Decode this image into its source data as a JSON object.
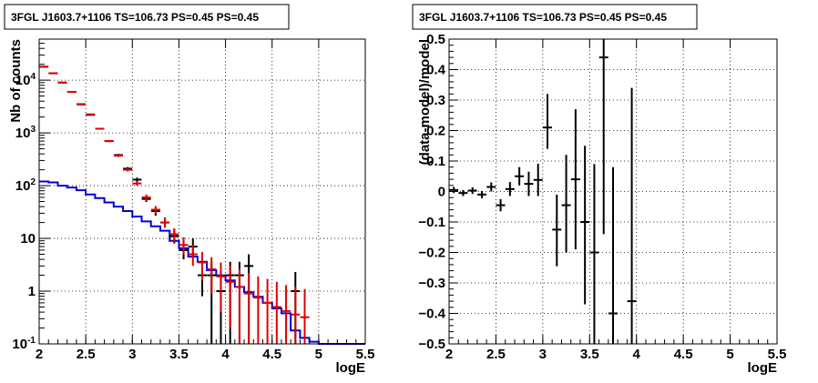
{
  "chart_data": [
    {
      "type": "line",
      "title": "3FGL J1603.7+1106 TS=106.73 PS=0.45 PS=0.45",
      "xlabel": "logE",
      "ylabel": "Nb of counts",
      "xlim": [
        2,
        5.5
      ],
      "ylim": [
        0.1,
        60000
      ],
      "yscale": "log",
      "grid": true,
      "xticks": [
        "2",
        "2.5",
        "3",
        "3.5",
        "4",
        "4.5",
        "5",
        "5.5"
      ],
      "yticks": [
        "10^-1",
        "1",
        "10",
        "10^2",
        "10^3",
        "10^4"
      ],
      "series": [
        {
          "color": "#000000",
          "points": [
            {
              "x": 2.05,
              "y": 18000,
              "lo": 17800,
              "hi": 18200
            },
            {
              "x": 2.15,
              "y": 13500,
              "lo": 13300,
              "hi": 13700
            },
            {
              "x": 2.25,
              "y": 9000,
              "lo": 8850,
              "hi": 9150
            },
            {
              "x": 2.35,
              "y": 6000,
              "lo": 5900,
              "hi": 6100
            },
            {
              "x": 2.45,
              "y": 3500,
              "lo": 3420,
              "hi": 3580
            },
            {
              "x": 2.55,
              "y": 2200,
              "lo": 2150,
              "hi": 2250
            },
            {
              "x": 2.65,
              "y": 1200,
              "lo": 1160,
              "hi": 1240
            },
            {
              "x": 2.75,
              "y": 700,
              "lo": 670,
              "hi": 730
            },
            {
              "x": 2.85,
              "y": 380,
              "lo": 360,
              "hi": 400
            },
            {
              "x": 2.95,
              "y": 210,
              "lo": 195,
              "hi": 225
            },
            {
              "x": 3.05,
              "y": 130,
              "lo": 118,
              "hi": 142
            },
            {
              "x": 3.15,
              "y": 56,
              "lo": 49,
              "hi": 63
            },
            {
              "x": 3.25,
              "y": 33,
              "lo": 27,
              "hi": 39
            },
            {
              "x": 3.35,
              "y": 20,
              "lo": 16,
              "hi": 25
            },
            {
              "x": 3.45,
              "y": 11,
              "lo": 8,
              "hi": 15
            },
            {
              "x": 3.55,
              "y": 6,
              "lo": 4,
              "hi": 9
            },
            {
              "x": 3.65,
              "y": 7,
              "lo": 4.5,
              "hi": 10
            },
            {
              "x": 3.75,
              "y": 2,
              "lo": 0.8,
              "hi": 3.6
            },
            {
              "x": 3.85,
              "y": 2,
              "lo": 0.1,
              "hi": 3.6
            },
            {
              "x": 3.95,
              "y": 1,
              "lo": 0.1,
              "hi": 2.3
            },
            {
              "x": 4.05,
              "y": 2,
              "lo": 0.1,
              "hi": 3.6
            },
            {
              "x": 4.15,
              "y": 2,
              "lo": 0.1,
              "hi": 3.6
            },
            {
              "x": 4.25,
              "y": 3,
              "lo": 0.1,
              "hi": 5
            },
            {
              "x": 4.75,
              "y": 1,
              "lo": 0.1,
              "hi": 2.3
            }
          ]
        },
        {
          "color": "#e00000",
          "points": [
            {
              "x": 2.05,
              "y": 18000,
              "lo": 17800,
              "hi": 18200
            },
            {
              "x": 2.15,
              "y": 13500,
              "lo": 13300,
              "hi": 13700
            },
            {
              "x": 2.25,
              "y": 9000,
              "lo": 8850,
              "hi": 9150
            },
            {
              "x": 2.35,
              "y": 6000,
              "lo": 5900,
              "hi": 6100
            },
            {
              "x": 2.45,
              "y": 3450,
              "lo": 3380,
              "hi": 3520
            },
            {
              "x": 2.55,
              "y": 2250,
              "lo": 2190,
              "hi": 2310
            },
            {
              "x": 2.65,
              "y": 1200,
              "lo": 1160,
              "hi": 1240
            },
            {
              "x": 2.75,
              "y": 700,
              "lo": 670,
              "hi": 730
            },
            {
              "x": 2.85,
              "y": 370,
              "lo": 350,
              "hi": 390
            },
            {
              "x": 2.95,
              "y": 200,
              "lo": 186,
              "hi": 214
            },
            {
              "x": 3.05,
              "y": 110,
              "lo": 100,
              "hi": 121
            },
            {
              "x": 3.15,
              "y": 60,
              "lo": 52,
              "hi": 68
            },
            {
              "x": 3.25,
              "y": 35,
              "lo": 29,
              "hi": 41
            },
            {
              "x": 3.35,
              "y": 20,
              "lo": 16,
              "hi": 25
            },
            {
              "x": 3.45,
              "y": 12,
              "lo": 8.5,
              "hi": 15.5
            },
            {
              "x": 3.55,
              "y": 7.5,
              "lo": 5,
              "hi": 10.5
            },
            {
              "x": 3.65,
              "y": 5,
              "lo": 3,
              "hi": 7.5
            },
            {
              "x": 3.75,
              "y": 3.5,
              "lo": 1.6,
              "hi": 5.5
            },
            {
              "x": 3.85,
              "y": 2.6,
              "lo": 0.9,
              "hi": 4.4
            },
            {
              "x": 3.95,
              "y": 1.9,
              "lo": 0.4,
              "hi": 3.5
            },
            {
              "x": 4.05,
              "y": 1.5,
              "lo": 0.2,
              "hi": 3
            },
            {
              "x": 4.15,
              "y": 1.2,
              "lo": 0.1,
              "hi": 2.6
            },
            {
              "x": 4.25,
              "y": 0.9,
              "lo": 0.1,
              "hi": 2.2
            },
            {
              "x": 4.35,
              "y": 0.75,
              "lo": 0.1,
              "hi": 1.9
            },
            {
              "x": 4.45,
              "y": 0.6,
              "lo": 0.1,
              "hi": 1.7
            },
            {
              "x": 4.55,
              "y": 0.5,
              "lo": 0.1,
              "hi": 1.5
            },
            {
              "x": 4.65,
              "y": 0.42,
              "lo": 0.1,
              "hi": 1.3
            },
            {
              "x": 4.75,
              "y": 0.36,
              "lo": 0.1,
              "hi": 1.2
            },
            {
              "x": 4.85,
              "y": 0.32,
              "lo": 0.1,
              "hi": 1.1
            }
          ]
        },
        {
          "color": "#0000dd",
          "step": true,
          "bin_width": 0.1,
          "points": [
            {
              "x": 2.0,
              "y": 120
            },
            {
              "x": 2.1,
              "y": 115
            },
            {
              "x": 2.2,
              "y": 100
            },
            {
              "x": 2.3,
              "y": 92
            },
            {
              "x": 2.4,
              "y": 82
            },
            {
              "x": 2.5,
              "y": 68
            },
            {
              "x": 2.6,
              "y": 58
            },
            {
              "x": 2.7,
              "y": 48
            },
            {
              "x": 2.8,
              "y": 40
            },
            {
              "x": 2.9,
              "y": 33
            },
            {
              "x": 3.0,
              "y": 26
            },
            {
              "x": 3.1,
              "y": 21
            },
            {
              "x": 3.2,
              "y": 17
            },
            {
              "x": 3.3,
              "y": 14
            },
            {
              "x": 3.4,
              "y": 9
            },
            {
              "x": 3.5,
              "y": 6.5
            },
            {
              "x": 3.6,
              "y": 4.5
            },
            {
              "x": 3.7,
              "y": 3.6
            },
            {
              "x": 3.8,
              "y": 2.5
            },
            {
              "x": 3.9,
              "y": 2.0
            },
            {
              "x": 4.0,
              "y": 1.6
            },
            {
              "x": 4.1,
              "y": 1.2
            },
            {
              "x": 4.2,
              "y": 0.95
            },
            {
              "x": 4.3,
              "y": 0.78
            },
            {
              "x": 4.4,
              "y": 0.6
            },
            {
              "x": 4.5,
              "y": 0.47
            },
            {
              "x": 4.6,
              "y": 0.38
            },
            {
              "x": 4.7,
              "y": 0.18
            },
            {
              "x": 4.8,
              "y": 0.13
            },
            {
              "x": 4.9,
              "y": 0.11
            },
            {
              "x": 5.0,
              "y": 0.1
            },
            {
              "x": 5.1,
              "y": 0.1
            },
            {
              "x": 5.2,
              "y": 0.1
            },
            {
              "x": 5.3,
              "y": 0.1
            },
            {
              "x": 5.4,
              "y": 0.1
            }
          ]
        }
      ]
    },
    {
      "type": "scatter",
      "title": "3FGL J1603.7+1106 TS=106.73 PS=0.45 PS=0.45",
      "xlabel": "logE",
      "ylabel": "(data-model)/model",
      "xlim": [
        2,
        5.5
      ],
      "ylim": [
        -0.5,
        0.5
      ],
      "grid": true,
      "xticks": [
        "2",
        "2.5",
        "3",
        "3.5",
        "4",
        "4.5",
        "5",
        "5.5"
      ],
      "yticks": [
        "-0.5",
        "-0.4",
        "-0.3",
        "-0.2",
        "-0.1",
        "0",
        "0.1",
        "0.2",
        "0.3",
        "0.4",
        "0.5"
      ],
      "series": [
        {
          "color": "#000000",
          "points": [
            {
              "x": 2.05,
              "y": 0.005,
              "lo": -0.005,
              "hi": 0.015
            },
            {
              "x": 2.15,
              "y": -0.005,
              "lo": -0.015,
              "hi": 0.005
            },
            {
              "x": 2.25,
              "y": 0.003,
              "lo": -0.008,
              "hi": 0.014
            },
            {
              "x": 2.35,
              "y": -0.01,
              "lo": -0.022,
              "hi": 0.002
            },
            {
              "x": 2.45,
              "y": 0.015,
              "lo": 0.0,
              "hi": 0.03
            },
            {
              "x": 2.55,
              "y": -0.045,
              "lo": -0.065,
              "hi": -0.025
            },
            {
              "x": 2.65,
              "y": 0.008,
              "lo": -0.015,
              "hi": 0.031
            },
            {
              "x": 2.75,
              "y": 0.05,
              "lo": 0.02,
              "hi": 0.08
            },
            {
              "x": 2.85,
              "y": 0.025,
              "lo": -0.015,
              "hi": 0.065
            },
            {
              "x": 2.95,
              "y": 0.038,
              "lo": -0.015,
              "hi": 0.091
            },
            {
              "x": 3.05,
              "y": 0.21,
              "lo": 0.14,
              "hi": 0.32
            },
            {
              "x": 3.15,
              "y": -0.125,
              "lo": -0.245,
              "hi": -0.01
            },
            {
              "x": 3.25,
              "y": -0.045,
              "lo": -0.2,
              "hi": 0.12
            },
            {
              "x": 3.35,
              "y": 0.04,
              "lo": -0.19,
              "hi": 0.27
            },
            {
              "x": 3.45,
              "y": -0.1,
              "lo": -0.37,
              "hi": 0.15
            },
            {
              "x": 3.55,
              "y": -0.2,
              "lo": -0.5,
              "hi": 0.09
            },
            {
              "x": 3.65,
              "y": 0.44,
              "lo": -0.14,
              "hi": 0.5
            },
            {
              "x": 3.75,
              "y": -0.4,
              "lo": -0.5,
              "hi": 0.08
            },
            {
              "x": 3.95,
              "y": -0.36,
              "lo": -0.5,
              "hi": 0.34
            }
          ]
        }
      ]
    }
  ]
}
